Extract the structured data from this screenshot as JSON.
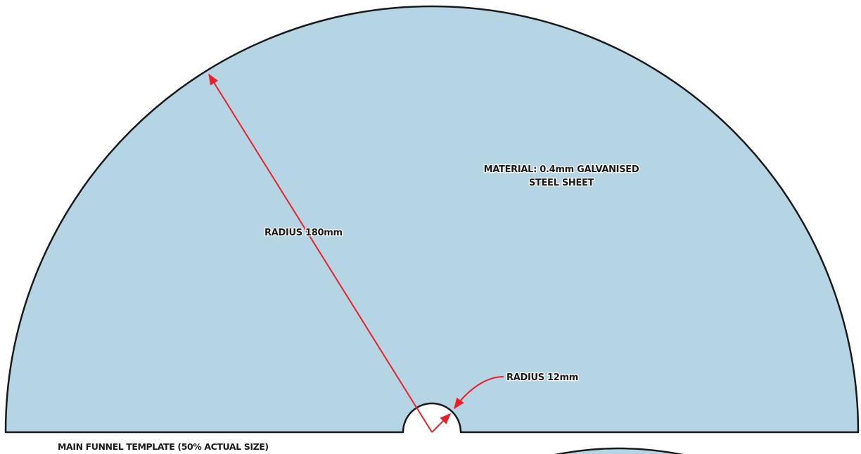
{
  "diagram": {
    "material_line1": "MATERIAL: 0.4mm GALVANISED",
    "material_line2": "STEEL SHEET",
    "outer_radius_label": "RADIUS 180mm",
    "inner_radius_label": "RADIUS 12mm",
    "caption": "MAIN FUNNEL TEMPLATE (50% ACTUAL SIZE)"
  },
  "colors": {
    "sheet_fill": "#b5d5e5",
    "outline": "#1a1a1a",
    "dimension_line": "#e8202a"
  }
}
